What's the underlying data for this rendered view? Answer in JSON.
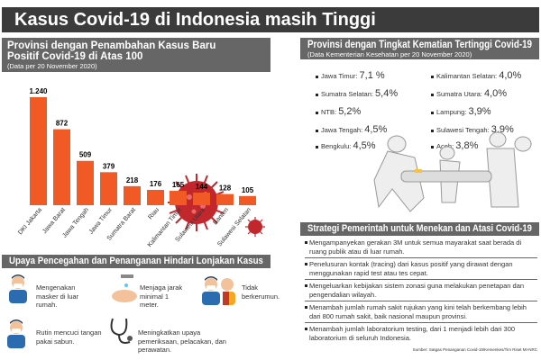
{
  "title": "Kasus Covid-19 di Indonesia masih Tinggi",
  "left_header": {
    "line1": "Provinsi dengan Penambahan Kasus Baru",
    "line2": "Positif Covid-19 di Atas 100",
    "note": "(Data per 20 November 2020)"
  },
  "chart_data": {
    "type": "bar",
    "categories": [
      "DKI Jakarta",
      "Jawa Barat",
      "Jawa Tengah",
      "Jawa Timur",
      "Sumatra Barat",
      "Riau",
      "Kalimantan Timur",
      "Sulawesi Utara",
      "Banten",
      "Sulawesi Selatan"
    ],
    "values": [
      1240,
      872,
      509,
      379,
      218,
      176,
      165,
      144,
      128,
      105
    ],
    "value_labels": [
      "1.240",
      "872",
      "509",
      "379",
      "218",
      "176",
      "165",
      "144",
      "128",
      "105"
    ],
    "bar_color": "#f15a24",
    "grid": false
  },
  "right_header": {
    "title": "Provinsi dengan Tingkat Kematian Tertinggi Covid-19",
    "note": "(Data Kementerian Kesehatan per 20 November 2020)"
  },
  "death_rates": [
    {
      "name": "Jawa Timur:",
      "value": "7,1 %"
    },
    {
      "name": "Sumatra Selatan:",
      "value": "5,4%"
    },
    {
      "name": "NTB:",
      "value": "5,2%"
    },
    {
      "name": "Jawa Tengah:",
      "value": "4,5%"
    },
    {
      "name": "Bengkulu:",
      "value": "4,5%"
    },
    {
      "name": "Kalimantan Selatan:",
      "value": "4,0%"
    },
    {
      "name": "Sumatra Utara:",
      "value": "4,0%"
    },
    {
      "name": "Lampung:",
      "value": "3,9%"
    },
    {
      "name": "Sulawesi Tengah:",
      "value": "3,9%"
    },
    {
      "name": "Aceh:",
      "value": "3,8%"
    }
  ],
  "strategy": {
    "title": "Strategi Pemerintah untuk Menekan dan Atasi Covid-19",
    "items": [
      "Mengampanyekan gerakan 3M untuk semua mayarakat saat berada di ruang publik atau di luar rumah.",
      "Penelusuran kontak (tracing) dari kasus positif yang dirawat dengan menggunakan rapid test atau tes cepat.",
      "Mengeluarkan kebijakan sistem zonasi guna melakukan penetapan dan pengendalian wilayah.",
      "Menambah jumlah rumah sakit rujukan yang kini telah berkembang lebih dari 800 rumah sakit, baik nasional maupun provinsi.",
      "Menambah jumlah laboratorium testing, dari 1 menjadi lebih dari 300 laboratorium di seluruh Indonesia."
    ]
  },
  "prevention": {
    "title": "Upaya Pencegahan dan Penanganan Hindari Lonjakan Kasus",
    "items": [
      {
        "text": "Mengenakan masker di luar rumah.",
        "icon": "masked-person-icon"
      },
      {
        "text": "Menjaga jarak minimal 1 meter.",
        "icon": "hand-washing-icon"
      },
      {
        "text": "Tidak berkerumun.",
        "icon": "distancing-icon"
      },
      {
        "text": "Rutin mencuci tangan pakai sabun.",
        "icon": "crowd-icon"
      },
      {
        "text": "Meningkatkan upaya pemeriksaan, pelacakan, dan perawatan.",
        "icon": "stethoscope-icon"
      }
    ]
  },
  "source": "Sumber: Satgas Penanganan Covid-19/Kemenkes/Tim Riset MI-NRC"
}
